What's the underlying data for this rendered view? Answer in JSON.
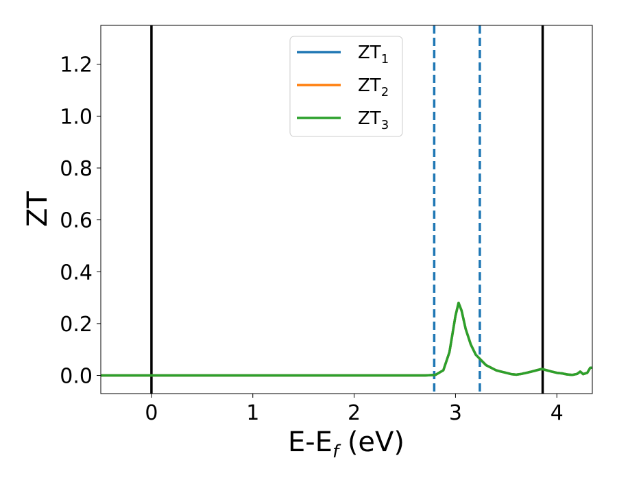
{
  "chart_data": {
    "type": "line",
    "title": "",
    "xlabel": "E-E",
    "xlabel_sub": "f",
    "xlabel_unit": " (eV)",
    "ylabel": "ZT",
    "xlim": [
      -0.5,
      4.35
    ],
    "ylim": [
      -0.07,
      1.35
    ],
    "x_ticks": [
      0,
      1,
      2,
      3,
      4
    ],
    "x_tick_labels": [
      "0",
      "1",
      "2",
      "3",
      "4"
    ],
    "y_ticks": [
      0.0,
      0.2,
      0.4,
      0.6,
      0.8,
      1.0,
      1.2
    ],
    "y_tick_labels": [
      "0.0",
      "0.2",
      "0.4",
      "0.6",
      "0.8",
      "1.0",
      "1.2"
    ],
    "grid": false,
    "legend_position": "top-center",
    "vertical_lines": [
      {
        "x": 0.0,
        "style": "solid",
        "color": "#000000"
      },
      {
        "x": 2.79,
        "style": "dashed",
        "color": "#1f77b4"
      },
      {
        "x": 3.24,
        "style": "dashed",
        "color": "#1f77b4"
      },
      {
        "x": 3.86,
        "style": "solid",
        "color": "#000000"
      }
    ],
    "series": [
      {
        "name": "ZT",
        "name_sub": "1",
        "color": "#1f77b4",
        "x": [
          -0.5,
          2.7,
          2.8,
          2.88,
          2.94,
          3.0,
          3.03,
          3.06,
          3.1,
          3.15,
          3.2,
          3.25,
          3.3,
          3.35,
          3.4,
          3.45,
          3.5,
          3.55,
          3.6,
          3.65,
          3.7,
          3.75,
          3.8,
          3.85,
          3.9,
          3.95,
          4.0,
          4.05,
          4.1,
          4.15,
          4.2,
          4.23,
          4.26,
          4.3,
          4.33,
          4.35
        ],
        "y": [
          0.0,
          0.0,
          0.002,
          0.02,
          0.09,
          0.23,
          0.28,
          0.25,
          0.18,
          0.12,
          0.08,
          0.06,
          0.04,
          0.03,
          0.02,
          0.015,
          0.01,
          0.005,
          0.003,
          0.006,
          0.01,
          0.015,
          0.02,
          0.025,
          0.02,
          0.015,
          0.01,
          0.008,
          0.004,
          0.002,
          0.006,
          0.015,
          0.005,
          0.01,
          0.03,
          0.03
        ]
      },
      {
        "name": "ZT",
        "name_sub": "2",
        "color": "#ff7f0e",
        "x": [
          -0.5,
          2.7,
          2.8,
          2.88,
          2.94,
          3.0,
          3.03,
          3.06,
          3.1,
          3.15,
          3.2,
          3.25,
          3.3,
          3.35,
          3.4,
          3.45,
          3.5,
          3.55,
          3.6,
          3.65,
          3.7,
          3.75,
          3.8,
          3.85,
          3.9,
          3.95,
          4.0,
          4.05,
          4.1,
          4.15,
          4.2,
          4.23,
          4.26,
          4.3,
          4.33,
          4.35
        ],
        "y": [
          0.0,
          0.0,
          0.002,
          0.02,
          0.09,
          0.23,
          0.28,
          0.25,
          0.18,
          0.12,
          0.08,
          0.06,
          0.04,
          0.03,
          0.02,
          0.015,
          0.01,
          0.005,
          0.003,
          0.006,
          0.01,
          0.015,
          0.02,
          0.025,
          0.02,
          0.015,
          0.01,
          0.008,
          0.004,
          0.002,
          0.006,
          0.015,
          0.005,
          0.01,
          0.03,
          0.03
        ]
      },
      {
        "name": "ZT",
        "name_sub": "3",
        "color": "#2ca02c",
        "x": [
          -0.5,
          2.7,
          2.8,
          2.88,
          2.94,
          3.0,
          3.03,
          3.06,
          3.1,
          3.15,
          3.2,
          3.25,
          3.3,
          3.35,
          3.4,
          3.45,
          3.5,
          3.55,
          3.6,
          3.65,
          3.7,
          3.75,
          3.8,
          3.85,
          3.9,
          3.95,
          4.0,
          4.05,
          4.1,
          4.15,
          4.2,
          4.23,
          4.26,
          4.3,
          4.33,
          4.35
        ],
        "y": [
          0.0,
          0.0,
          0.002,
          0.02,
          0.09,
          0.23,
          0.28,
          0.25,
          0.18,
          0.12,
          0.08,
          0.06,
          0.04,
          0.03,
          0.02,
          0.015,
          0.01,
          0.005,
          0.003,
          0.006,
          0.01,
          0.015,
          0.02,
          0.025,
          0.02,
          0.015,
          0.01,
          0.008,
          0.004,
          0.002,
          0.006,
          0.015,
          0.005,
          0.01,
          0.03,
          0.03
        ]
      }
    ]
  }
}
